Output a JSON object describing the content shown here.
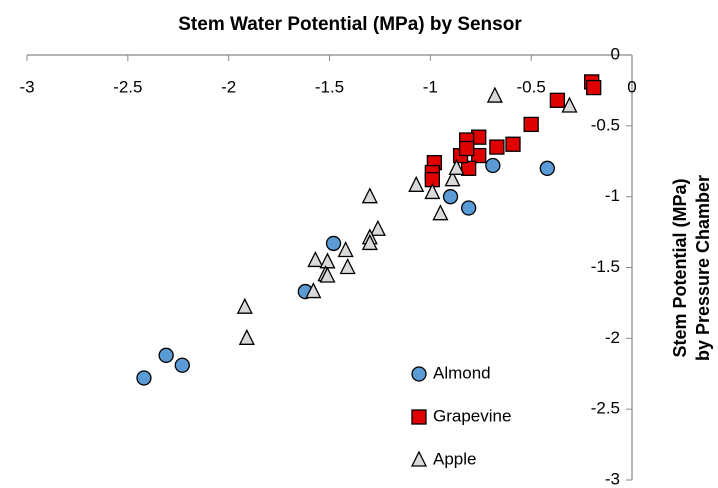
{
  "chart_data": {
    "type": "scatter",
    "title": "Stem Water Potential (MPa) by Sensor",
    "ylabel": [
      "Stem Potential (MPa)",
      "by Pressure Chamber"
    ],
    "xlim": [
      -3,
      0
    ],
    "ylim": [
      -3,
      0
    ],
    "xticks": [
      -3,
      -2.5,
      -2,
      -1.5,
      -1,
      -0.5,
      0
    ],
    "yticks": [
      0,
      -0.5,
      -1,
      -1.5,
      -2,
      -2.5,
      -3
    ],
    "x_axis_position": "top",
    "y_axis_position": "right",
    "legend": "bottom-right",
    "series": [
      {
        "name": "Almond",
        "color": "#5b9bd5",
        "marker": "circle",
        "x": [
          -2.42,
          -2.31,
          -2.23,
          -1.48,
          -1.62,
          -0.9,
          -0.81,
          -0.69,
          -0.42
        ],
        "values": [
          -2.28,
          -2.12,
          -2.19,
          -1.33,
          -1.67,
          -1.0,
          -1.08,
          -0.78,
          -0.8
        ]
      },
      {
        "name": "Grapevine",
        "color": "#e00000",
        "marker": "square",
        "x": [
          -0.2,
          -0.19,
          -0.37,
          -0.5,
          -0.59,
          -0.67,
          -0.76,
          -0.82,
          -0.76,
          -0.81,
          -0.85,
          -0.82,
          -0.98,
          -0.99,
          -0.99
        ],
        "values": [
          -0.19,
          -0.23,
          -0.32,
          -0.49,
          -0.63,
          -0.65,
          -0.58,
          -0.6,
          -0.71,
          -0.8,
          -0.71,
          -0.66,
          -0.76,
          -0.83,
          -0.88
        ]
      },
      {
        "name": "Apple",
        "color": "#d9d9d9",
        "marker": "triangle",
        "x": [
          -0.68,
          -0.31,
          -1.07,
          -0.99,
          -0.95,
          -0.89,
          -0.87,
          -1.3,
          -1.26,
          -1.3,
          -1.3,
          -1.42,
          -1.41,
          -1.57,
          -1.51,
          -1.52,
          -1.51,
          -1.58,
          -1.92,
          -1.91
        ],
        "values": [
          -0.29,
          -0.36,
          -0.92,
          -0.97,
          -1.12,
          -0.88,
          -0.8,
          -1.0,
          -1.23,
          -1.29,
          -1.33,
          -1.38,
          -1.5,
          -1.45,
          -1.46,
          -1.55,
          -1.56,
          -1.67,
          -1.78,
          -2.0
        ]
      }
    ]
  }
}
